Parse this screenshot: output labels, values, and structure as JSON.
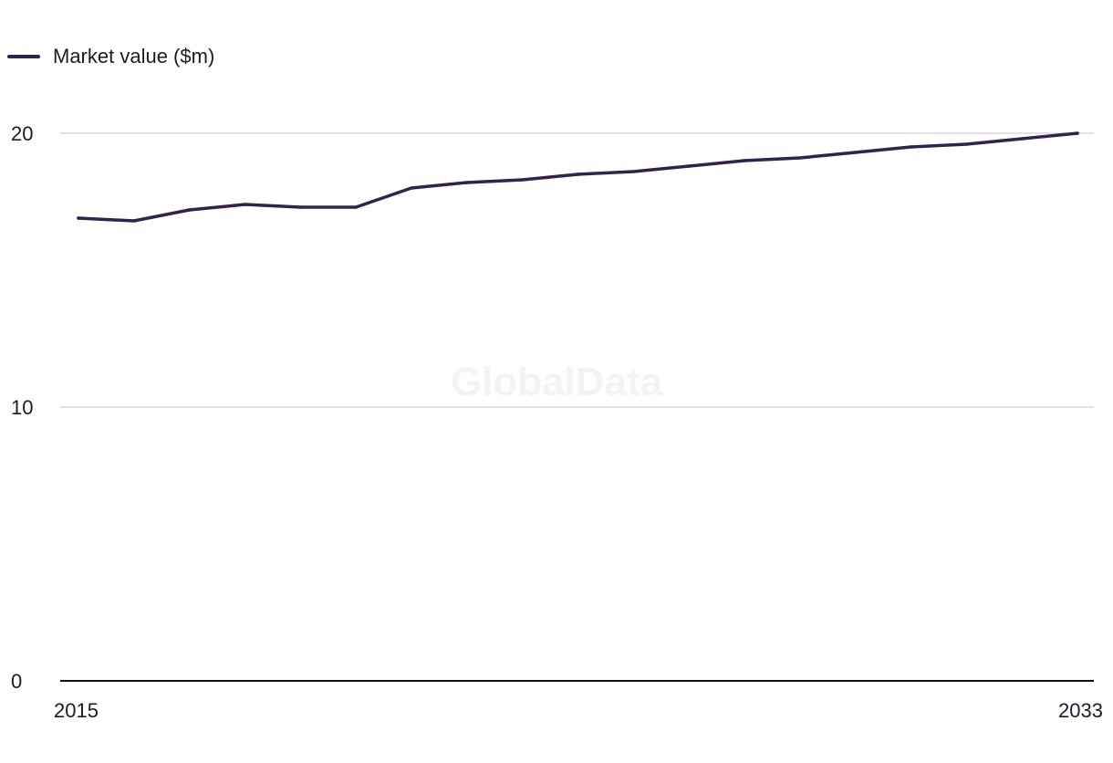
{
  "watermark": "GlobalData",
  "colors": {
    "series": "#33224f",
    "grid": "#d9d9d9",
    "axis": "#111111"
  },
  "chart_data": {
    "type": "line",
    "title": "",
    "xlabel": "",
    "ylabel": "",
    "legend_position": "top-left",
    "grid": true,
    "x": [
      2015,
      2016,
      2017,
      2018,
      2019,
      2020,
      2021,
      2022,
      2023,
      2024,
      2025,
      2026,
      2027,
      2028,
      2029,
      2030,
      2031,
      2032,
      2033
    ],
    "series": [
      {
        "name": "Market value ($m)",
        "values": [
          16.9,
          16.8,
          17.2,
          17.4,
          17.3,
          17.3,
          18.0,
          18.2,
          18.3,
          18.5,
          18.6,
          18.8,
          19.0,
          19.1,
          19.3,
          19.5,
          19.6,
          19.8,
          20.0
        ]
      }
    ],
    "xlim": [
      2015,
      2033
    ],
    "ylim": [
      0,
      20
    ],
    "y_ticks": [
      0,
      10,
      20
    ],
    "y_tick_labels": [
      "0",
      "10",
      "20"
    ],
    "x_tick_labels": [
      "2015",
      "2033"
    ]
  }
}
